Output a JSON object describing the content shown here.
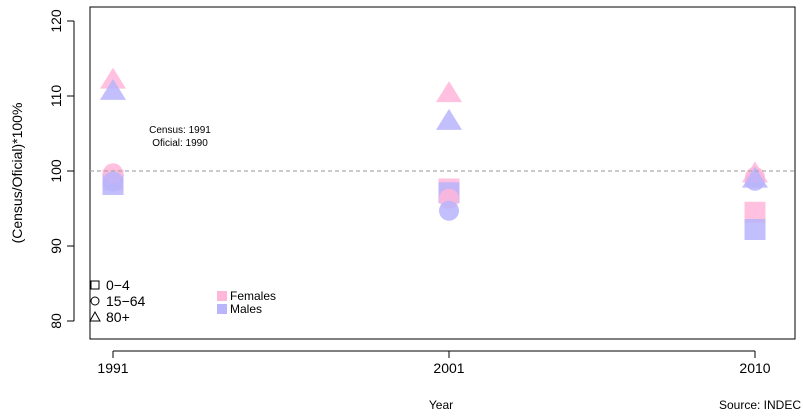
{
  "chart_data": {
    "type": "scatter",
    "xlabel": "Year",
    "ylabel": "(Census/Oficial)*100%",
    "source": "Source: INDEC",
    "ylim": [
      80,
      120
    ],
    "yticks": [
      80,
      90,
      100,
      110,
      120
    ],
    "categories": [
      "1991",
      "2001",
      "2010"
    ],
    "reference_line": 100,
    "annotation": [
      "Census: 1991",
      "Oficial: 1990"
    ],
    "shape_legend": [
      {
        "label": "0−4",
        "shape": "square"
      },
      {
        "label": "15−64",
        "shape": "circle"
      },
      {
        "label": "80+",
        "shape": "triangle"
      }
    ],
    "color_legend": [
      {
        "label": "Females",
        "color": "#ffb6d9"
      },
      {
        "label": "Males",
        "color": "#b9b4fb"
      }
    ],
    "series": [
      {
        "group": "0−4",
        "sex": "Females",
        "shape": "square",
        "color": "#ffb6d9",
        "values": [
          98.8,
          97.6,
          94.5
        ]
      },
      {
        "group": "0−4",
        "sex": "Males",
        "shape": "square",
        "color": "#b9b4fb",
        "values": [
          98.2,
          97.1,
          92.2
        ]
      },
      {
        "group": "15−64",
        "sex": "Females",
        "shape": "circle",
        "color": "#ffb6d9",
        "values": [
          99.7,
          96.3,
          99.2
        ]
      },
      {
        "group": "15−64",
        "sex": "Males",
        "shape": "circle",
        "color": "#b9b4fb",
        "values": [
          98.6,
          94.7,
          98.7
        ]
      },
      {
        "group": "80+",
        "sex": "Females",
        "shape": "triangle",
        "color": "#ffb6d9",
        "values": [
          112.1,
          110.3,
          99.6
        ]
      },
      {
        "group": "80+",
        "sex": "Males",
        "shape": "triangle",
        "color": "#b9b4fb",
        "values": [
          110.6,
          106.6,
          98.9
        ]
      }
    ]
  }
}
